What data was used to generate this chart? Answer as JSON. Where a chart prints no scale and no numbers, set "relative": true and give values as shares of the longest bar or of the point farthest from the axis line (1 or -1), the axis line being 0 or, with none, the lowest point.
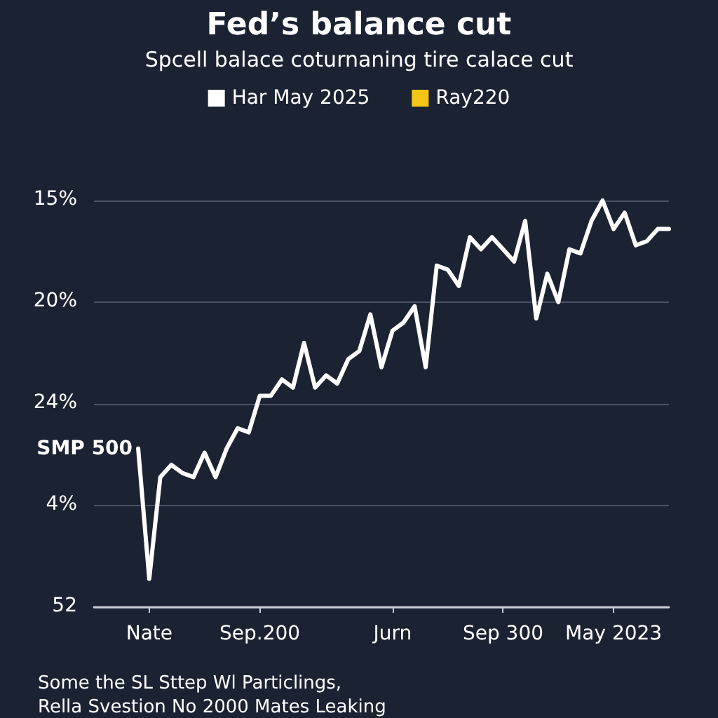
{
  "chart_data": {
    "type": "line",
    "title": "Fed’s balance cut",
    "subtitle": "Spcell balace coturnaning tire calace cut",
    "categories": [
      null,
      null,
      null,
      null,
      null,
      "Nate",
      null,
      null,
      null,
      null,
      null,
      null,
      null,
      null,
      null,
      "Sep.200",
      null,
      null,
      null,
      null,
      null,
      null,
      null,
      null,
      null,
      null,
      null,
      "Jurn",
      null,
      null,
      null,
      null,
      null,
      null,
      null,
      null,
      null,
      "Sep 300",
      null,
      null,
      null,
      null,
      null,
      null,
      null,
      null,
      null,
      "May 2023",
      null,
      null,
      null,
      null,
      null
    ],
    "relative": true,
    "series": [
      {
        "name": "Har May 2025",
        "color": "#ffffff",
        "values": [
          null,
          null,
          null,
          null,
          0.39,
          0.07,
          0.32,
          0.35,
          0.33,
          0.32,
          0.38,
          0.32,
          0.39,
          0.44,
          0.43,
          0.52,
          0.52,
          0.56,
          0.54,
          0.65,
          0.54,
          0.57,
          0.55,
          0.61,
          0.63,
          0.72,
          0.59,
          0.68,
          0.7,
          0.74,
          0.59,
          0.84,
          0.83,
          0.79,
          0.91,
          0.88,
          0.91,
          0.88,
          0.85,
          0.95,
          0.71,
          0.82,
          0.75,
          0.88,
          0.87,
          0.95,
          1,
          0.93,
          0.97,
          0.89,
          0.9,
          0.93,
          0.93
        ]
      },
      {
        "name": "Ray220",
        "color": "#f5c518",
        "values": [
          null,
          null,
          null,
          null,
          null,
          null,
          null,
          null,
          null,
          null,
          null,
          null,
          null,
          null,
          null,
          null,
          null,
          null,
          null,
          null,
          null,
          null,
          null,
          null,
          null,
          null,
          null,
          null,
          null,
          null,
          null,
          null,
          null,
          null,
          null,
          null,
          null,
          null,
          null,
          null,
          null,
          null,
          null,
          null,
          null,
          null,
          null,
          null,
          null,
          null,
          null,
          null,
          null
        ]
      }
    ],
    "annotations": [
      "15%",
      "20%",
      "24%",
      "4%",
      "52",
      "SMP 500",
      "Some the SL Sttep Wl Particlings,",
      "Rella Svestion No 2000 Mates Leaking"
    ],
    "grid": "y",
    "legend": "top",
    "marker": "none",
    "line_style": "solid"
  }
}
